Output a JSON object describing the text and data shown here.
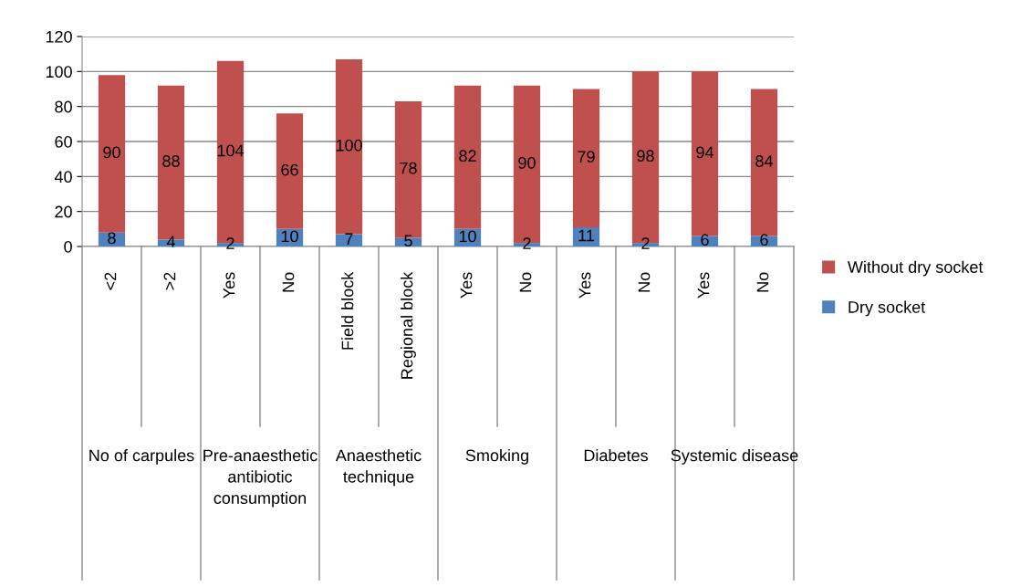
{
  "chart_data": {
    "type": "bar",
    "stacked": true,
    "categories": [
      "<2",
      ">2",
      "Yes",
      "No",
      "Field block",
      "Regional block",
      "Yes",
      "No",
      "Yes",
      "No",
      "Yes",
      "No"
    ],
    "series": [
      {
        "name": "Dry socket",
        "color": "#4f81bd",
        "values": [
          8,
          4,
          2,
          10,
          7,
          5,
          10,
          2,
          11,
          2,
          6,
          6
        ]
      },
      {
        "name": "Without dry socket",
        "color": "#c0504d",
        "values": [
          90,
          88,
          104,
          66,
          100,
          78,
          82,
          90,
          79,
          98,
          94,
          84
        ]
      }
    ],
    "annotations": [
      "No of carpules",
      "Pre-anaesthetic antibiotic consumption",
      "Anaesthetic technique",
      "Smoking",
      "Diabetes",
      "Systemic disease"
    ],
    "ylim": [
      0,
      120
    ],
    "yticks": [
      0,
      20,
      40,
      60,
      80,
      100,
      120
    ],
    "grid": "y",
    "legend": "right",
    "data_labels": true
  }
}
